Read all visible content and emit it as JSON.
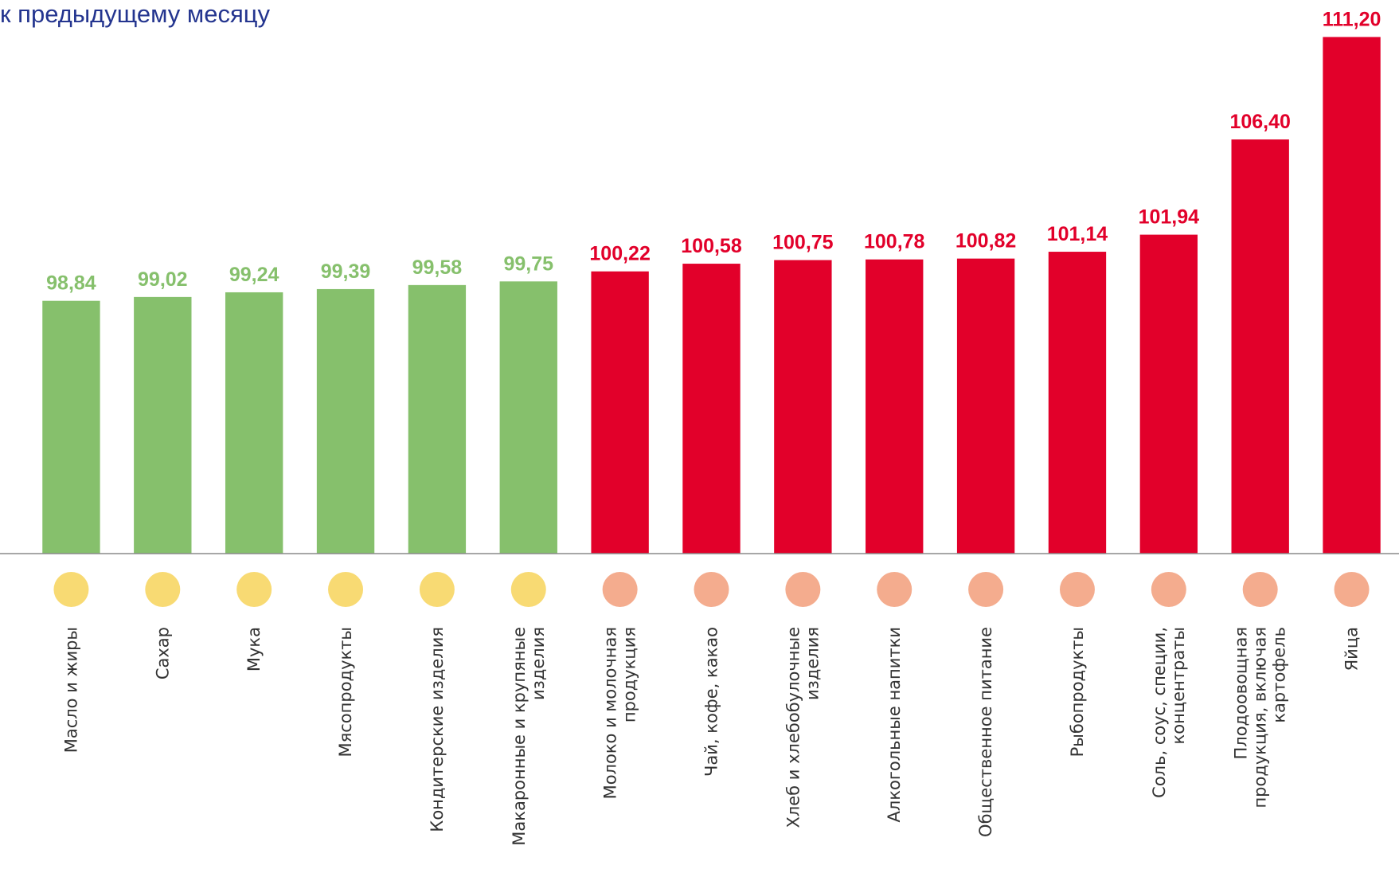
{
  "chart_data": {
    "type": "bar",
    "title": "к предыдущему месяцу",
    "categories": [
      "Масло и жиры",
      "Сахар",
      "Мука",
      "Мясопродукты",
      "Кондитерские изделия",
      "Макаронные и крупяные\nизделия",
      "Молоко и молочная\nпродукция",
      "Чай, кофе, какао",
      "Хлеб и хлебобулочные\nизделия",
      "Алкогольные напитки",
      "Общественное питание",
      "Рыбопродукты",
      "Соль, соус, специи,\nконцентраты",
      "Плодоовощная\nпродукция, включая\nкартофель",
      "Яйца"
    ],
    "values": [
      98.84,
      99.02,
      99.24,
      99.39,
      99.58,
      99.75,
      100.22,
      100.58,
      100.75,
      100.78,
      100.82,
      101.14,
      101.94,
      106.4,
      111.2
    ],
    "value_labels": [
      "98,84",
      "99,02",
      "99,24",
      "99,39",
      "99,58",
      "99,75",
      "100,22",
      "100,58",
      "100,75",
      "100,78",
      "100,82",
      "101,14",
      "101,94",
      "106,40",
      "111,20"
    ],
    "colors": [
      "#86c06c",
      "#86c06c",
      "#86c06c",
      "#86c06c",
      "#86c06c",
      "#86c06c",
      "#e2002a",
      "#e2002a",
      "#e2002a",
      "#e2002a",
      "#e2002a",
      "#e2002a",
      "#e2002a",
      "#e2002a",
      "#e2002a"
    ],
    "ylim": [
      87,
      112
    ]
  }
}
